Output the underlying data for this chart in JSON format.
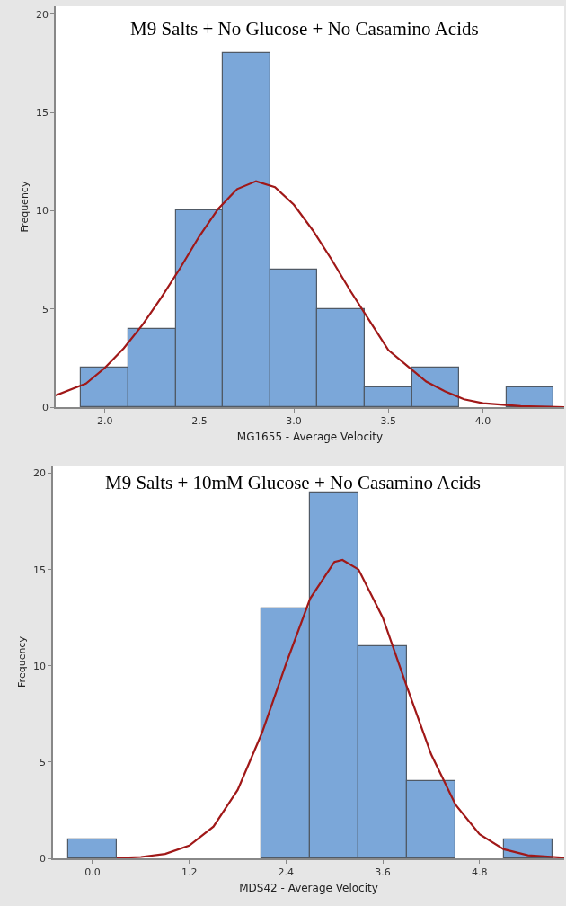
{
  "chart_data": [
    {
      "type": "histogram",
      "title": "M9 Salts + No Glucose + No Casamino Acids",
      "xlabel": "MG1655 - Average Velocity",
      "ylabel": "Frequency",
      "bins": [
        1.875,
        2.125,
        2.375,
        2.625,
        2.875,
        3.125,
        3.375,
        3.625,
        3.875,
        4.125,
        4.375
      ],
      "values": [
        2,
        4,
        10,
        18,
        7,
        5,
        1,
        2,
        0,
        1
      ],
      "color": "#7ba7d9",
      "series": [
        {
          "type": "line",
          "color": "#a01818",
          "x": [
            1.74,
            1.9,
            2.0,
            2.1,
            2.2,
            2.3,
            2.4,
            2.5,
            2.6,
            2.7,
            2.8,
            2.9,
            3.0,
            3.1,
            3.2,
            3.3,
            3.4,
            3.5,
            3.6,
            3.7,
            3.8,
            3.9,
            4.0,
            4.2,
            4.43
          ],
          "values": [
            0.6,
            1.2,
            2.0,
            3.0,
            4.2,
            5.6,
            7.1,
            8.7,
            10.1,
            11.1,
            11.5,
            11.2,
            10.3,
            9.0,
            7.5,
            5.9,
            4.4,
            2.9,
            2.1,
            1.3,
            0.8,
            0.4,
            0.2,
            0.05,
            0.0
          ]
        }
      ],
      "xlim": [
        1.74,
        4.43
      ],
      "xticks": [
        {
          "value": 2,
          "label": "2.0"
        },
        2.5,
        {
          "value": 3,
          "label": "3.0"
        },
        3.5,
        {
          "value": 4,
          "label": "4.0"
        }
      ],
      "ylim": [
        0,
        20.4
      ],
      "yticks": [
        0,
        5,
        10,
        15,
        20
      ]
    },
    {
      "type": "histogram",
      "title": "M9 Salts + 10mM Glucose + No Casamino Acids",
      "xlabel": "MDS42 - Average Velocity",
      "ylabel": "Frequency",
      "bins": [
        -0.3,
        0.3,
        0.9,
        1.5,
        2.1,
        2.7,
        3.3,
        3.9,
        4.5,
        5.1,
        5.7
      ],
      "values": [
        1,
        0,
        0,
        0,
        13,
        19,
        11,
        4,
        0,
        1
      ],
      "color": "#7ba7d9",
      "series": [
        {
          "type": "line",
          "color": "#a01818",
          "x": [
            0.3,
            0.6,
            0.9,
            1.2,
            1.5,
            1.8,
            2.1,
            2.4,
            2.7,
            3.0,
            3.1,
            3.3,
            3.6,
            3.9,
            4.2,
            4.5,
            4.8,
            5.1,
            5.4,
            5.85
          ],
          "values": [
            0.02,
            0.07,
            0.23,
            0.66,
            1.65,
            3.55,
            6.5,
            10.1,
            13.5,
            15.4,
            15.5,
            15.0,
            12.5,
            8.9,
            5.4,
            2.8,
            1.25,
            0.47,
            0.16,
            0.03
          ]
        }
      ],
      "xlim": [
        -0.49,
        5.85
      ],
      "xticks": [
        {
          "value": 0,
          "label": "0.0"
        },
        1.2,
        2.4,
        3.6,
        4.8
      ],
      "ylim": [
        0,
        20.4
      ],
      "yticks": [
        0,
        5,
        10,
        15,
        20
      ]
    }
  ]
}
